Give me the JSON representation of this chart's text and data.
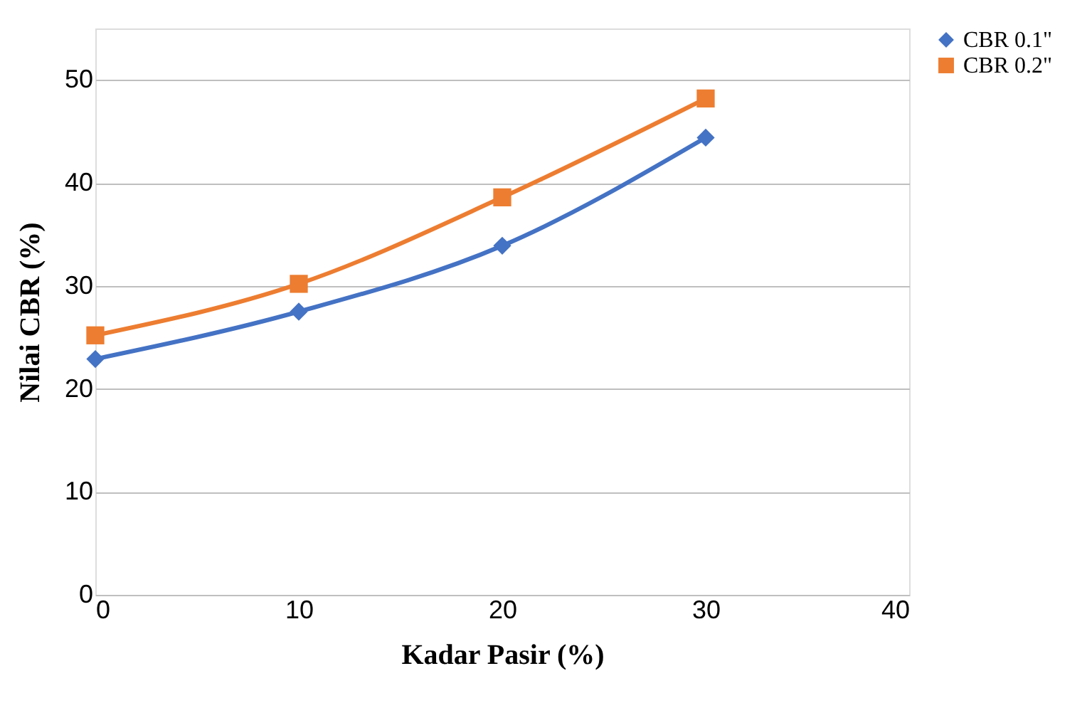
{
  "chart_data": {
    "type": "line",
    "xlabel": "Kadar Pasir (%)",
    "ylabel": "Nilai CBR (%)",
    "x": [
      0,
      10,
      20,
      30
    ],
    "series": [
      {
        "name": "CBR 0.1\"",
        "color": "#4472c4",
        "marker": "diamond",
        "values": [
          22.9,
          27.5,
          33.9,
          44.4
        ]
      },
      {
        "name": "CBR 0.2\"",
        "color": "#ed7d31",
        "marker": "square",
        "values": [
          25.2,
          30.2,
          38.6,
          48.2
        ]
      }
    ],
    "xlim": [
      0,
      40
    ],
    "xticks": [
      0,
      10,
      20,
      30,
      40
    ],
    "ylim": [
      0,
      55
    ],
    "yticks": [
      0,
      10,
      20,
      30,
      40,
      50
    ],
    "grid": "y",
    "legend": "right",
    "line_style": "solid"
  }
}
